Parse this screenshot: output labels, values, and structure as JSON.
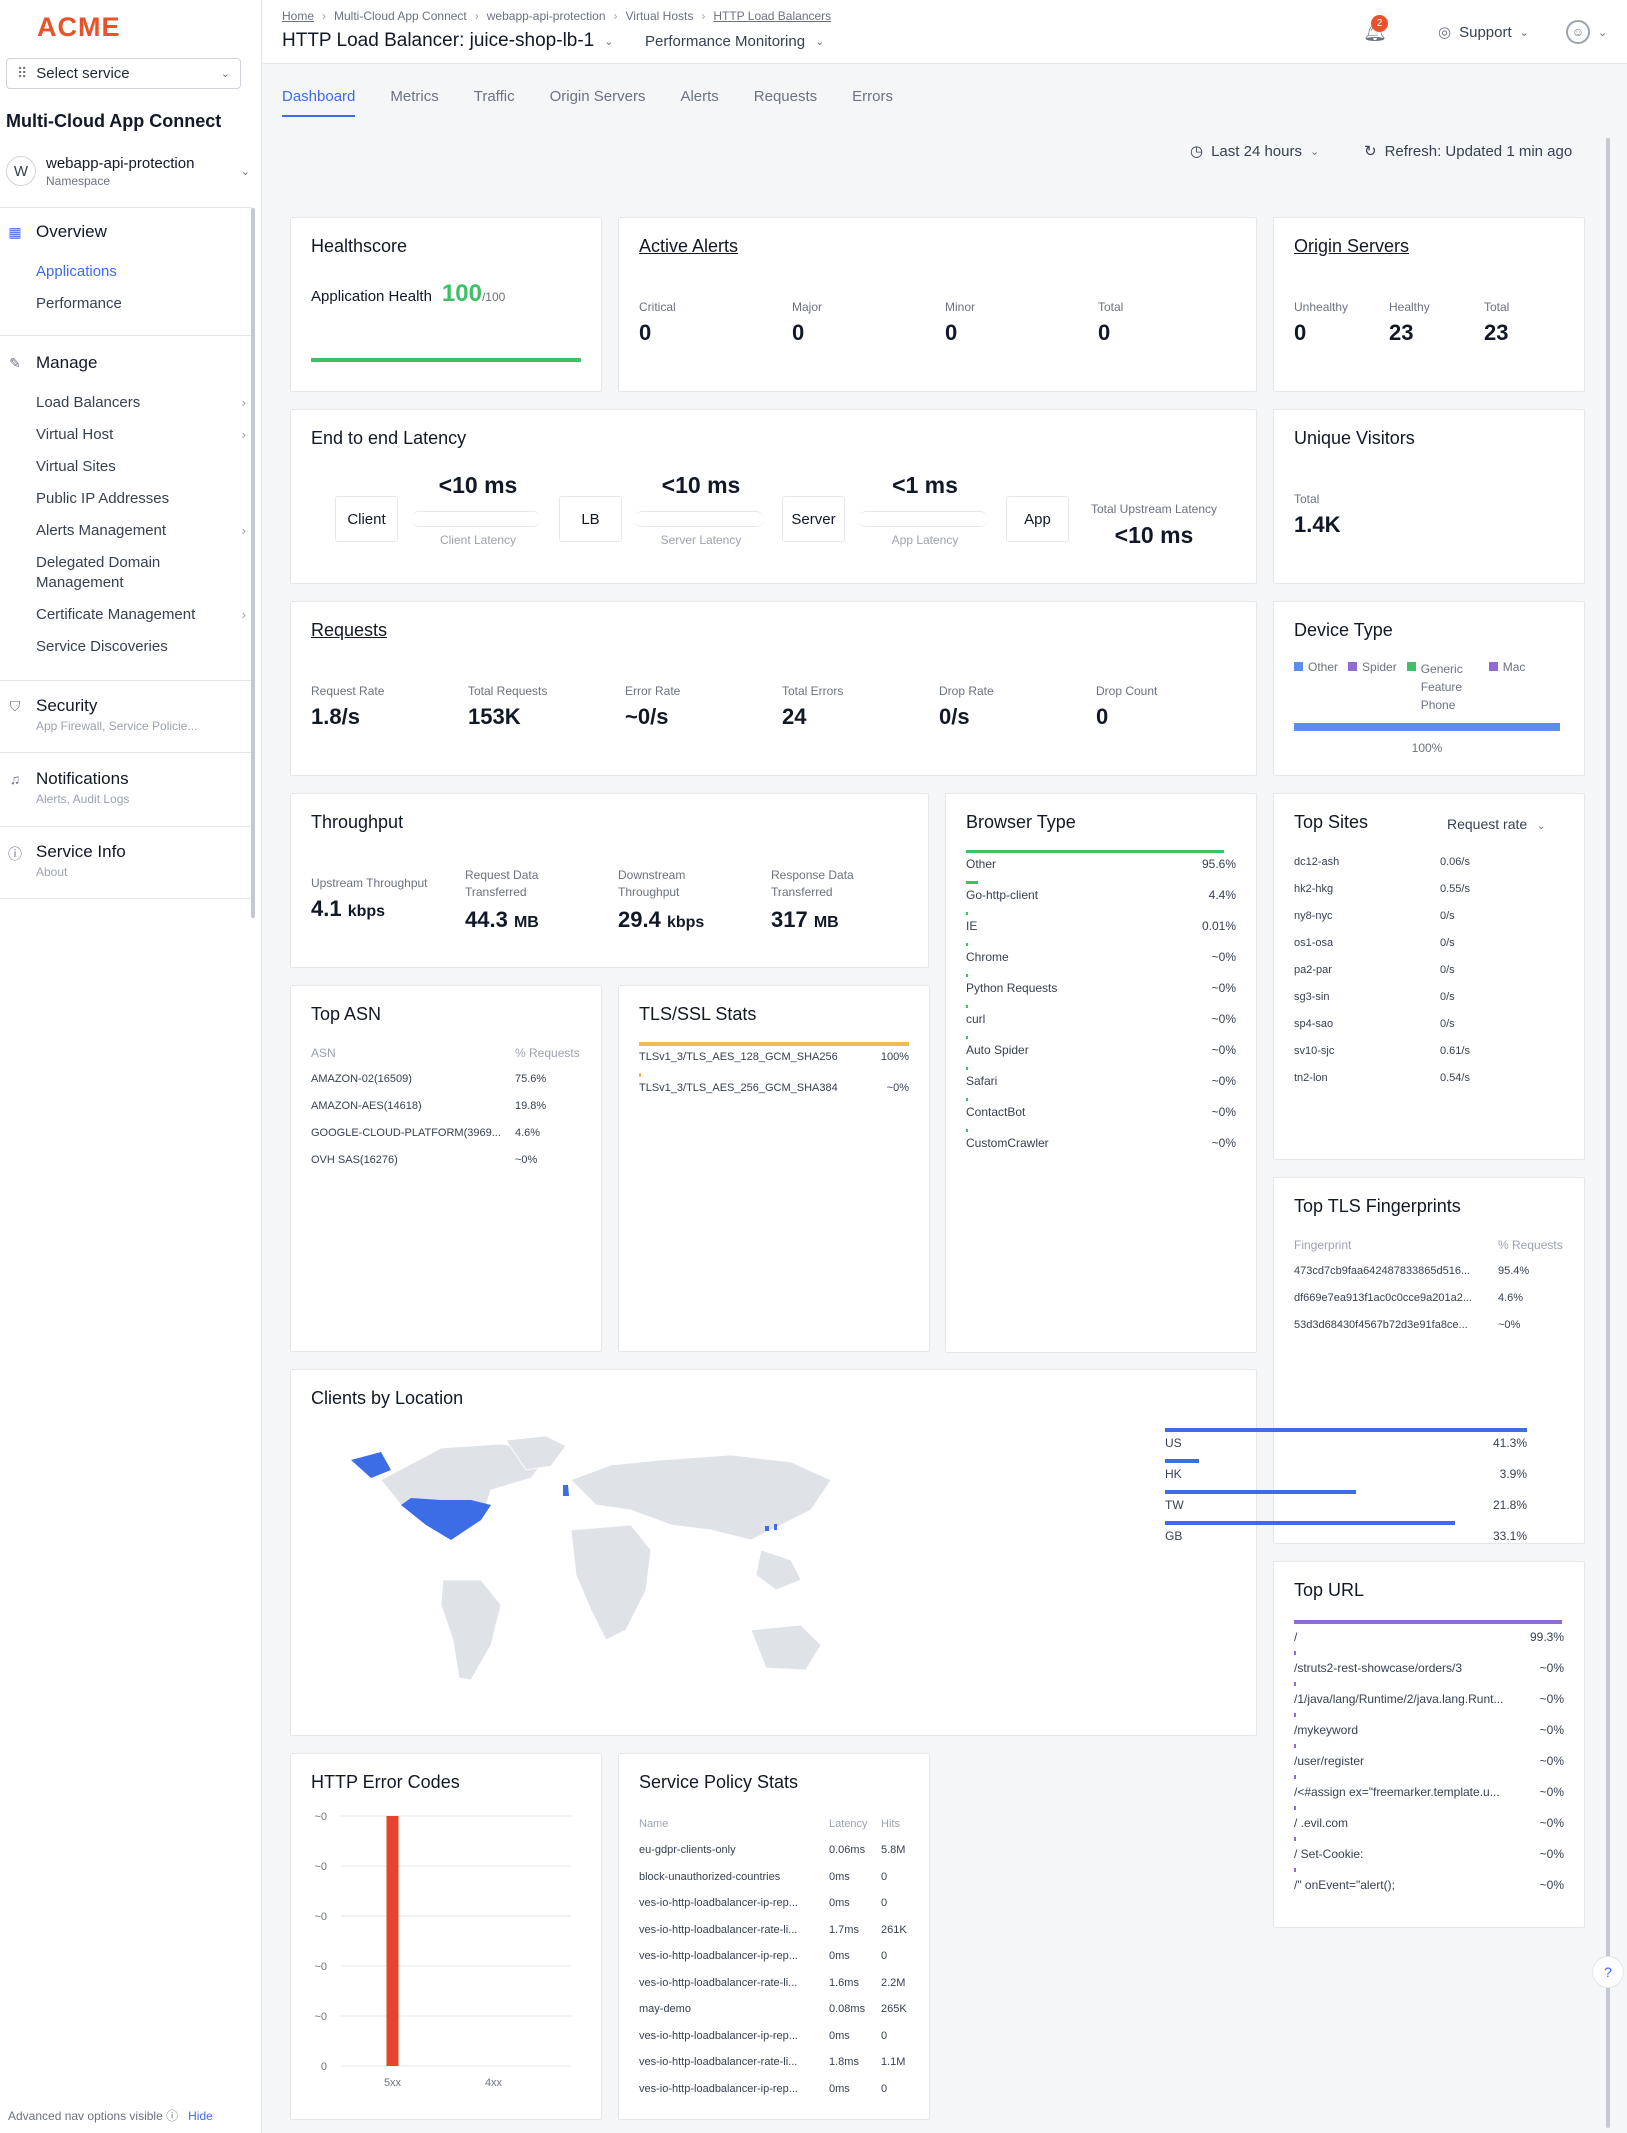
{
  "sidebar": {
    "logo": "ACME",
    "select_service": "Select service",
    "app_title": "Multi-Cloud App Connect",
    "namespace": {
      "avatar": "W",
      "name": "webapp-api-protection",
      "label": "Namespace"
    },
    "overview": {
      "title": "Overview",
      "items": [
        "Applications",
        "Performance"
      ]
    },
    "manage": {
      "title": "Manage",
      "items": [
        "Load Balancers",
        "Virtual Host",
        "Virtual Sites",
        "Public IP Addresses",
        "Alerts Management",
        "Delegated Domain",
        "Management",
        "Certificate Management",
        "Service Discoveries"
      ]
    },
    "security": {
      "title": "Security",
      "sub": "App Firewall, Service Policie..."
    },
    "notifications": {
      "title": "Notifications",
      "sub": "Alerts, Audit Logs"
    },
    "service_info": {
      "title": "Service Info",
      "sub": "About"
    },
    "advanced": "Advanced nav options visible",
    "hide": "Hide"
  },
  "header": {
    "breadcrumbs": [
      "Home",
      "Multi-Cloud App Connect",
      "webapp-api-protection",
      "Virtual Hosts",
      "HTTP Load Balancers"
    ],
    "title": "HTTP Load Balancer: juice-shop-lb-1",
    "view": "Performance Monitoring",
    "notif_count": "2",
    "support": "Support"
  },
  "tabs": [
    "Dashboard",
    "Metrics",
    "Traffic",
    "Origin Servers",
    "Alerts",
    "Requests",
    "Errors"
  ],
  "toolbar": {
    "time_range": "Last 24 hours",
    "refresh": "Refresh: Updated 1 min ago"
  },
  "healthscore": {
    "title": "Healthscore",
    "label": "Application Health",
    "value": "100",
    "max": "/100",
    "fraction": 1.0
  },
  "alerts": {
    "title": "Active Alerts",
    "items": [
      {
        "label": "Critical",
        "value": "0"
      },
      {
        "label": "Major",
        "value": "0"
      },
      {
        "label": "Minor",
        "value": "0"
      },
      {
        "label": "Total",
        "value": "0"
      }
    ]
  },
  "origin": {
    "title": "Origin Servers",
    "items": [
      {
        "label": "Unhealthy",
        "value": "0"
      },
      {
        "label": "Healthy",
        "value": "23"
      },
      {
        "label": "Total",
        "value": "23"
      }
    ]
  },
  "latency": {
    "title": "End to end Latency",
    "nodes": [
      "Client",
      "LB",
      "Server",
      "App"
    ],
    "segments": [
      {
        "value": "<10 ms",
        "label": "Client Latency"
      },
      {
        "value": "<10 ms",
        "label": "Server Latency"
      },
      {
        "value": "<1 ms",
        "label": "App Latency"
      }
    ],
    "total_label": "Total Upstream Latency",
    "total_value": "<10 ms"
  },
  "visitors": {
    "title": "Unique Visitors",
    "label": "Total",
    "value": "1.4K"
  },
  "requests": {
    "title": "Requests",
    "items": [
      {
        "label": "Request Rate",
        "value": "1.8/s"
      },
      {
        "label": "Total Requests",
        "value": "153K"
      },
      {
        "label": "Error Rate",
        "value": "~0/s"
      },
      {
        "label": "Total Errors",
        "value": "24"
      },
      {
        "label": "Drop Rate",
        "value": "0/s"
      },
      {
        "label": "Drop Count",
        "value": "0"
      }
    ]
  },
  "device": {
    "title": "Device Type",
    "legend": [
      {
        "name": "Other",
        "color": "#5b8def"
      },
      {
        "name": "Spider",
        "color": "#8e6bd6"
      },
      {
        "name": "Generic Feature Phone",
        "color": "#3fc067"
      },
      {
        "name": "Mac",
        "color": "#8e6bd6"
      }
    ],
    "bar_label": "100%",
    "fraction": 1.0
  },
  "throughput": {
    "title": "Throughput",
    "items": [
      {
        "label": "Upstream Throughput",
        "value": "4.1",
        "unit": "kbps"
      },
      {
        "label": "Request Data Transferred",
        "value": "44.3",
        "unit": "MB"
      },
      {
        "label": "Downstream Throughput",
        "value": "29.4",
        "unit": "kbps"
      },
      {
        "label": "Response Data Transferred",
        "value": "317",
        "unit": "MB"
      }
    ]
  },
  "browser": {
    "title": "Browser Type",
    "rows": [
      {
        "name": "Other",
        "pct": "95.6%",
        "v": 95.6
      },
      {
        "name": "Go-http-client",
        "pct": "4.4%",
        "v": 4.4
      },
      {
        "name": "IE",
        "pct": "0.01%",
        "v": 0.01
      },
      {
        "name": "Chrome",
        "pct": "~0%",
        "v": 0
      },
      {
        "name": "Python Requests",
        "pct": "~0%",
        "v": 0
      },
      {
        "name": "curl",
        "pct": "~0%",
        "v": 0
      },
      {
        "name": "Auto Spider",
        "pct": "~0%",
        "v": 0
      },
      {
        "name": "Safari",
        "pct": "~0%",
        "v": 0
      },
      {
        "name": "ContactBot",
        "pct": "~0%",
        "v": 0
      },
      {
        "name": "CustomCrawler",
        "pct": "~0%",
        "v": 0
      }
    ]
  },
  "sites": {
    "title": "Top Sites",
    "metric": "Request rate",
    "rows": [
      {
        "name": "dc12-ash",
        "v": "0.06/s"
      },
      {
        "name": "hk2-hkg",
        "v": "0.55/s"
      },
      {
        "name": "ny8-nyc",
        "v": "0/s"
      },
      {
        "name": "os1-osa",
        "v": "0/s"
      },
      {
        "name": "pa2-par",
        "v": "0/s"
      },
      {
        "name": "sg3-sin",
        "v": "0/s"
      },
      {
        "name": "sp4-sao",
        "v": "0/s"
      },
      {
        "name": "sv10-sjc",
        "v": "0.61/s"
      },
      {
        "name": "tn2-lon",
        "v": "0.54/s"
      }
    ]
  },
  "asn": {
    "title": "Top ASN",
    "col1": "ASN",
    "col2": "% Requests",
    "rows": [
      {
        "name": "AMAZON-02(16509)",
        "v": "75.6%"
      },
      {
        "name": "AMAZON-AES(14618)",
        "v": "19.8%"
      },
      {
        "name": "GOOGLE-CLOUD-PLATFORM(3969...",
        "v": "4.6%"
      },
      {
        "name": "OVH SAS(16276)",
        "v": "~0%"
      }
    ]
  },
  "tls": {
    "title": "TLS/SSL Stats",
    "rows": [
      {
        "name": "TLSv1_3/TLS_AES_128_GCM_SHA256",
        "v": "100%",
        "n": 100
      },
      {
        "name": "TLSv1_3/TLS_AES_256_GCM_SHA384",
        "v": "~0%",
        "n": 0
      }
    ]
  },
  "fingerprints": {
    "title": "Top TLS Fingerprints",
    "col1": "Fingerprint",
    "col2": "% Requests",
    "rows": [
      {
        "name": "473cd7cb9faa642487833865d516...",
        "v": "95.4%"
      },
      {
        "name": "df669e7ea913f1ac0c0cce9a201a2...",
        "v": "4.6%"
      },
      {
        "name": "53d3d68430f4567b72d3e91fa8ce...",
        "v": "~0%"
      }
    ]
  },
  "location": {
    "title": "Clients by Location",
    "rows": [
      {
        "name": "US",
        "pct": "41.3%",
        "v": 41.3
      },
      {
        "name": "HK",
        "pct": "3.9%",
        "v": 3.9
      },
      {
        "name": "TW",
        "pct": "21.8%",
        "v": 21.8
      },
      {
        "name": "GB",
        "pct": "33.1%",
        "v": 33.1
      }
    ]
  },
  "urls": {
    "title": "Top URL",
    "rows": [
      {
        "name": "/",
        "v": "99.3%",
        "n": 99.3
      },
      {
        "name": "/struts2-rest-showcase/orders/3",
        "v": "~0%",
        "n": 0
      },
      {
        "name": "/1/java/lang/Runtime/2/java.lang.Runt...",
        "v": "~0%",
        "n": 0
      },
      {
        "name": "/mykeyword",
        "v": "~0%",
        "n": 0
      },
      {
        "name": "/user/register",
        "v": "~0%",
        "n": 0
      },
      {
        "name": "/<#assign ex=\"freemarker.template.u...",
        "v": "~0%",
        "n": 0
      },
      {
        "name": "/ .evil.com",
        "v": "~0%",
        "n": 0
      },
      {
        "name": "/ Set-Cookie:",
        "v": "~0%",
        "n": 0
      },
      {
        "name": "/\" onEvent=\"alert();",
        "v": "~0%",
        "n": 0
      }
    ]
  },
  "error_codes": {
    "title": "HTTP Error Codes"
  },
  "policy": {
    "title": "Service Policy Stats",
    "cols": [
      "Name",
      "Latency",
      "Hits"
    ],
    "rows": [
      {
        "name": "eu-gdpr-clients-only",
        "lat": "0.06ms",
        "hits": "5.8M"
      },
      {
        "name": "block-unauthorized-countries",
        "lat": "0ms",
        "hits": "0"
      },
      {
        "name": "ves-io-http-loadbalancer-ip-rep...",
        "lat": "0ms",
        "hits": "0"
      },
      {
        "name": "ves-io-http-loadbalancer-rate-li...",
        "lat": "1.7ms",
        "hits": "261K"
      },
      {
        "name": "ves-io-http-loadbalancer-ip-rep...",
        "lat": "0ms",
        "hits": "0"
      },
      {
        "name": "ves-io-http-loadbalancer-rate-li...",
        "lat": "1.6ms",
        "hits": "2.2M"
      },
      {
        "name": "may-demo",
        "lat": "0.08ms",
        "hits": "265K"
      },
      {
        "name": "ves-io-http-loadbalancer-ip-rep...",
        "lat": "0ms",
        "hits": "0"
      },
      {
        "name": "ves-io-http-loadbalancer-rate-li...",
        "lat": "1.8ms",
        "hits": "1.1M"
      },
      {
        "name": "ves-io-http-loadbalancer-ip-rep...",
        "lat": "0ms",
        "hits": "0"
      }
    ]
  },
  "chart_data": {
    "type": "bar",
    "title": "HTTP Error Codes",
    "categories": [
      "5xx",
      "4xx"
    ],
    "values": [
      24,
      0
    ],
    "y_tick_labels": [
      "~0",
      "~0",
      "~0",
      "~0",
      "~0",
      "0"
    ],
    "color": "#e8432c"
  }
}
